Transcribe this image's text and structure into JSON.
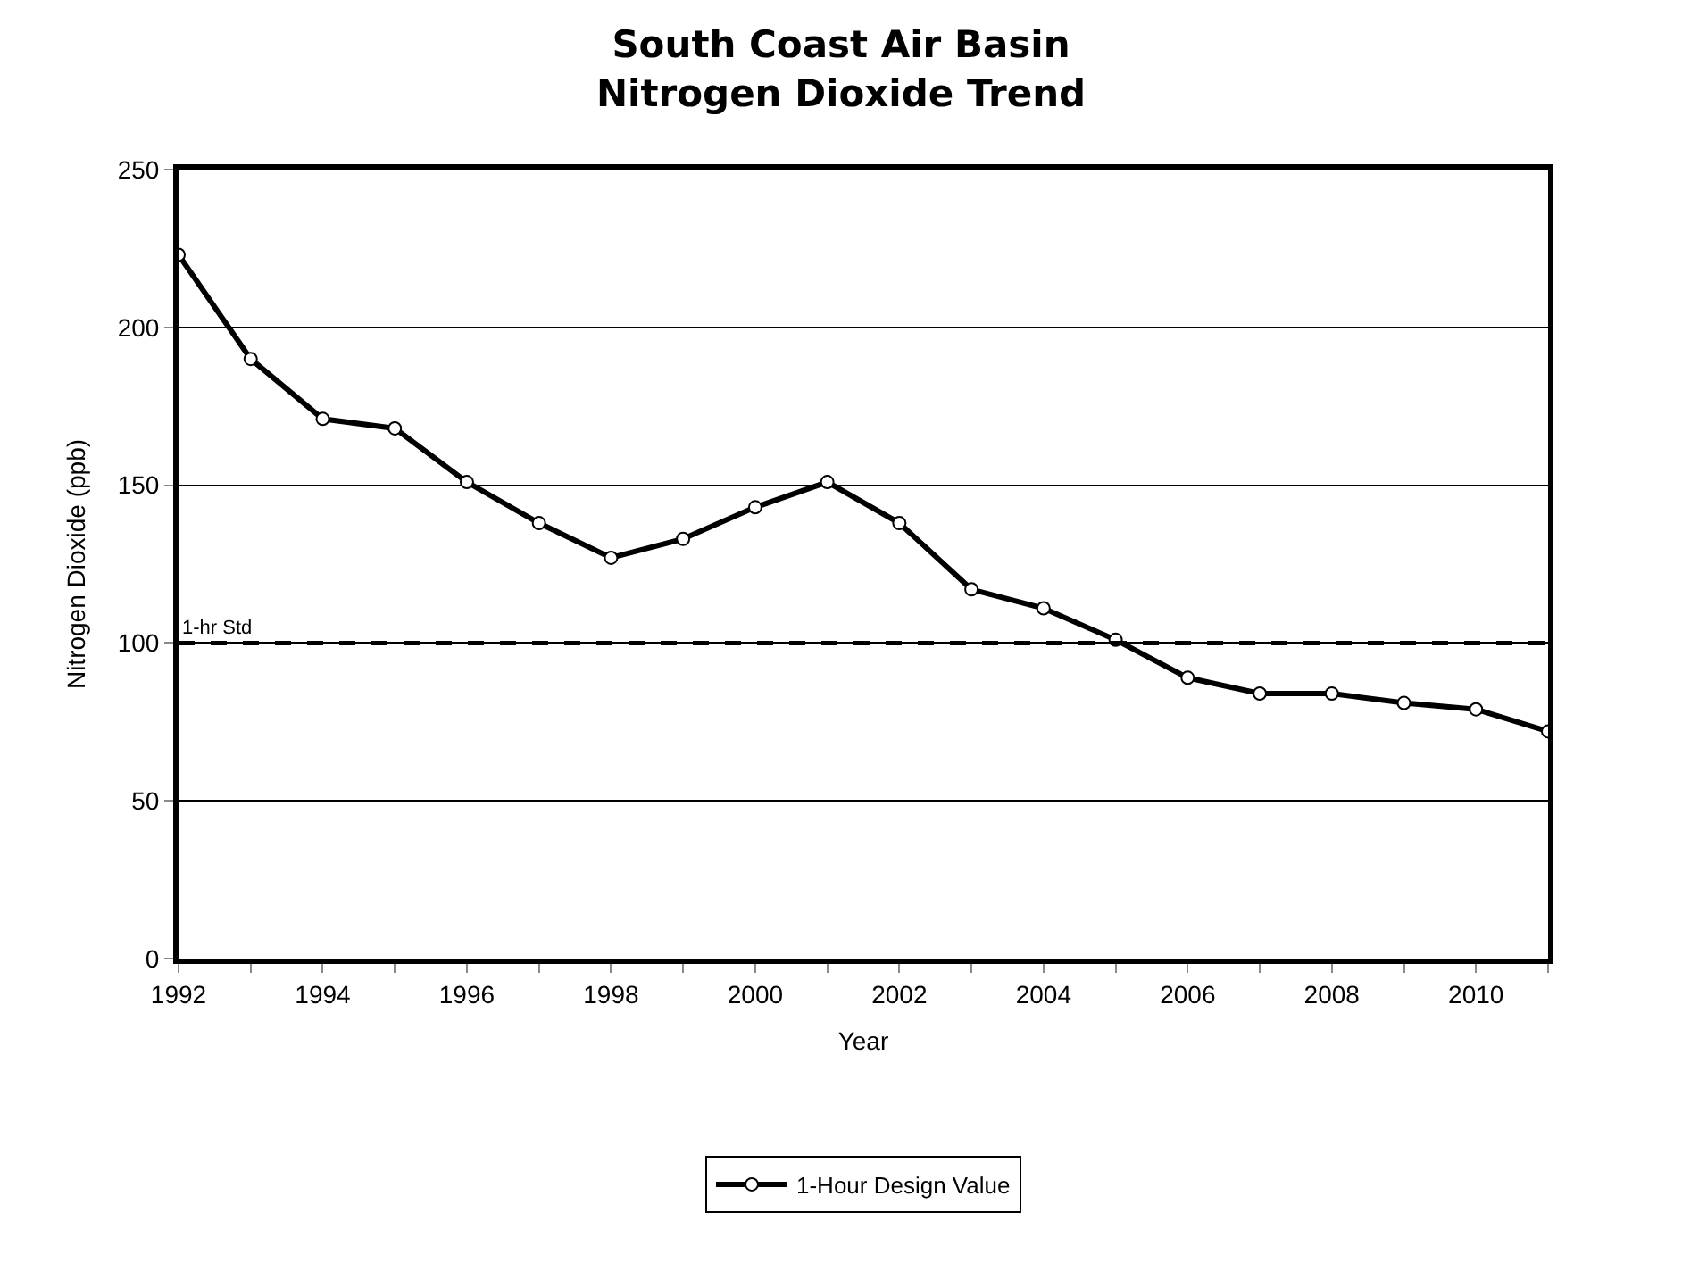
{
  "chart_data": {
    "type": "line",
    "title": "South Coast Air Basin\nNitrogen Dioxide Trend",
    "xlabel": "Year",
    "ylabel": "Nitrogen Dioxide (ppb)",
    "x": [
      1992,
      1993,
      1994,
      1995,
      1996,
      1997,
      1998,
      1999,
      2000,
      2001,
      2002,
      2003,
      2004,
      2005,
      2006,
      2007,
      2008,
      2009,
      2010,
      2011
    ],
    "series": [
      {
        "name": "1-Hour Design Value",
        "color": "#000000",
        "values": [
          223,
          190,
          171,
          168,
          151,
          138,
          127,
          133,
          143,
          151,
          138,
          117,
          111,
          101,
          89,
          84,
          84,
          81,
          79,
          72
        ]
      }
    ],
    "xlim": [
      1992,
      2011
    ],
    "xticks": [
      1992,
      {
        "value": 1993,
        "label": null
      },
      1994,
      {
        "value": 1995,
        "label": null
      },
      1996,
      {
        "value": 1997,
        "label": null
      },
      1998,
      {
        "value": 1999,
        "label": null
      },
      2000,
      {
        "value": 2001,
        "label": null
      },
      2002,
      {
        "value": 2003,
        "label": null
      },
      2004,
      {
        "value": 2005,
        "label": null
      },
      2006,
      {
        "value": 2007,
        "label": null
      },
      2008,
      {
        "value": 2009,
        "label": null
      },
      2010,
      {
        "value": 2011,
        "label": null
      }
    ],
    "ylim": [
      0,
      250
    ],
    "yticks": [
      0,
      50,
      100,
      150,
      200,
      250
    ],
    "ref_lines": [
      {
        "axis": "y",
        "value": 100,
        "label": "1-hr Std",
        "color": "#000000",
        "line_style": "dashed"
      }
    ],
    "grid": "y",
    "legend": "bottom",
    "marker": "circle",
    "line_style": "solid"
  }
}
